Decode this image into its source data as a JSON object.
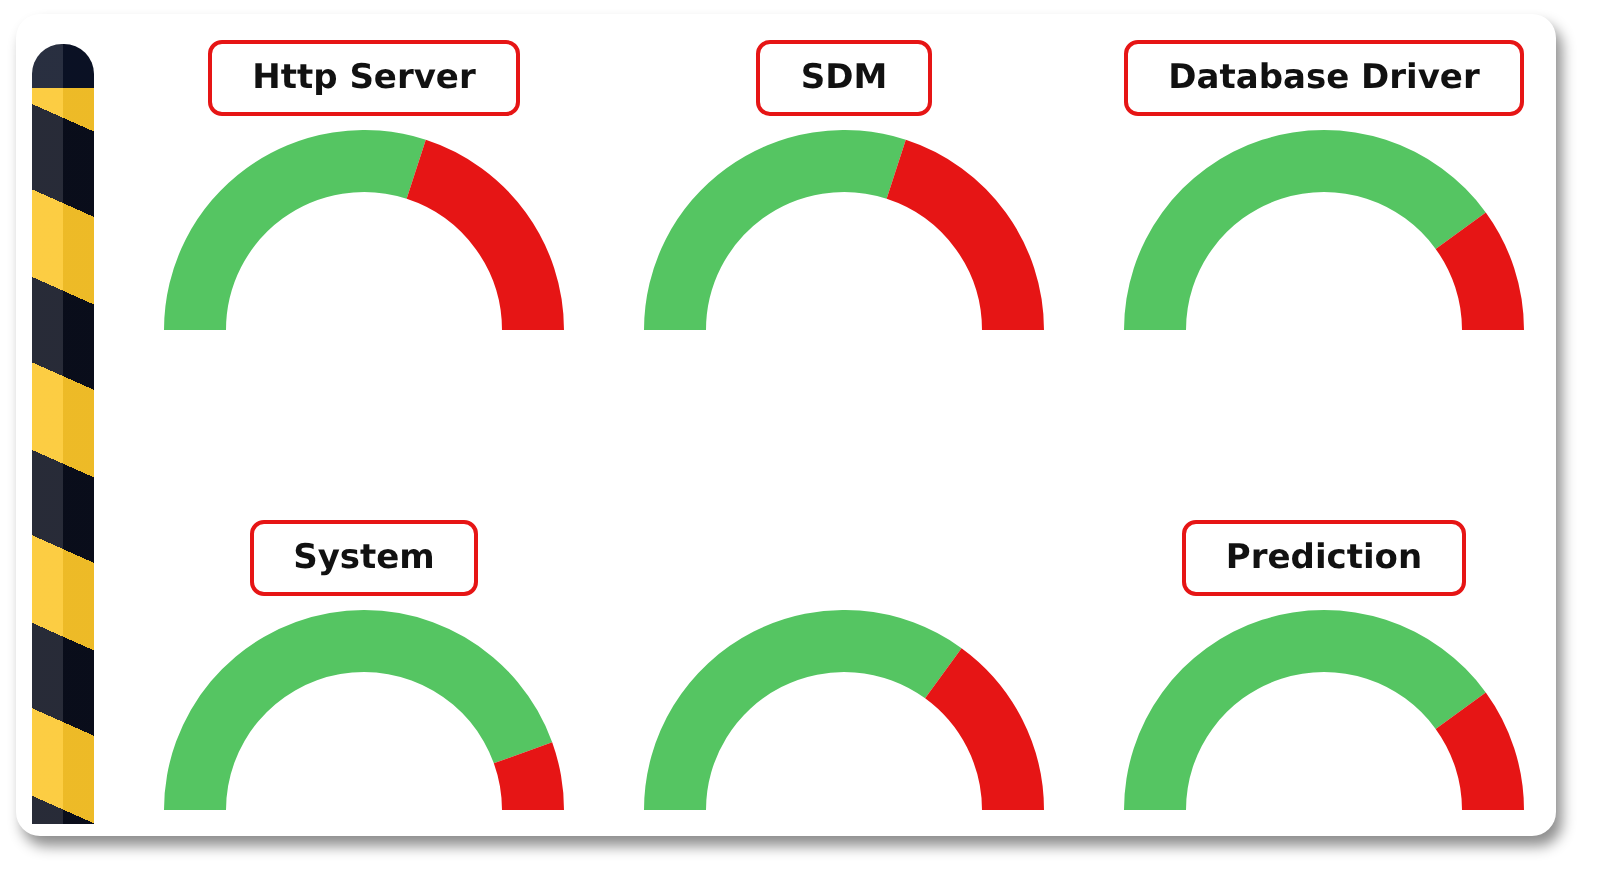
{
  "chart_data": [
    {
      "type": "donut",
      "title": "Http Server",
      "categories": [
        null,
        null
      ],
      "values": [
        60,
        40
      ],
      "colors": [
        "#55c562",
        "#e61515"
      ]
    },
    {
      "type": "donut",
      "title": "SDM",
      "categories": [
        null,
        null
      ],
      "values": [
        60,
        40
      ],
      "colors": [
        "#55c562",
        "#e61515"
      ]
    },
    {
      "type": "donut",
      "title": "Database Driver",
      "categories": [
        null,
        null
      ],
      "values": [
        80,
        20
      ],
      "colors": [
        "#55c562",
        "#e61515"
      ]
    },
    {
      "type": "donut",
      "title": "System",
      "categories": [
        null,
        null
      ],
      "values": [
        89,
        11
      ],
      "colors": [
        "#55c562",
        "#e61515"
      ]
    },
    {
      "type": "donut",
      "categories": [
        null,
        null
      ],
      "values": [
        70,
        30
      ],
      "colors": [
        "#55c562",
        "#e61515"
      ]
    },
    {
      "type": "donut",
      "title": "Prediction",
      "categories": [
        null,
        null
      ],
      "values": [
        80,
        20
      ],
      "colors": [
        "#55c562",
        "#e61515"
      ]
    }
  ]
}
